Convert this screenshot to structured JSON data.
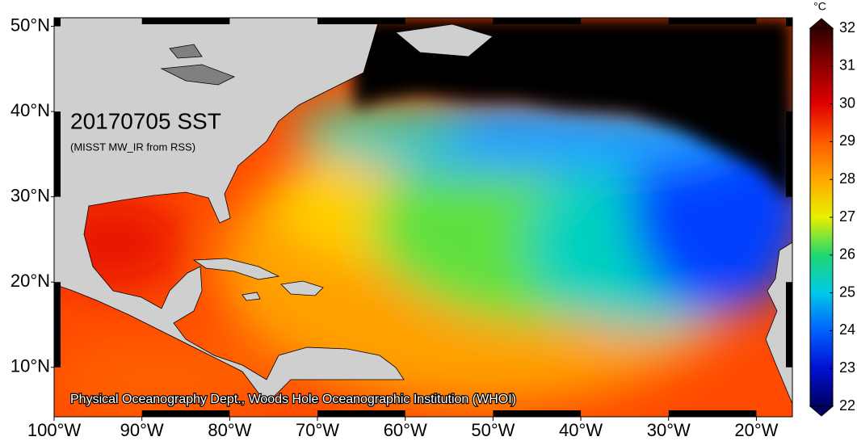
{
  "map": {
    "title": "20170705 SST",
    "subtitle": "(MISST MW_IR from RSS)",
    "credit": "Physical Oceanography Dept., Woods Hole Oceanographic Institution (WHOI)",
    "xlim": [
      -100,
      -15.9
    ],
    "ylim": [
      4.2,
      51
    ],
    "xticks": [
      {
        "value": -100,
        "label": "100°W"
      },
      {
        "value": -90,
        "label": "90°W"
      },
      {
        "value": -80,
        "label": "80°W"
      },
      {
        "value": -70,
        "label": "70°W"
      },
      {
        "value": -60,
        "label": "60°W"
      },
      {
        "value": -50,
        "label": "50°W"
      },
      {
        "value": -40,
        "label": "40°W"
      },
      {
        "value": -30,
        "label": "30°W"
      },
      {
        "value": -20,
        "label": "20°W"
      }
    ],
    "yticks": [
      {
        "value": 10,
        "label": "10°N"
      },
      {
        "value": 20,
        "label": "20°N"
      },
      {
        "value": 30,
        "label": "30°N"
      },
      {
        "value": 40,
        "label": "40°N"
      },
      {
        "value": 50,
        "label": "50°N"
      }
    ],
    "colorbar": {
      "unit": "°C",
      "lim": [
        22,
        32
      ],
      "ticks": [
        22,
        23,
        24,
        25,
        26,
        27,
        28,
        29,
        30,
        31,
        32
      ],
      "colors": [
        "#000060",
        "#0010d0",
        "#0060ff",
        "#00c8e8",
        "#20d870",
        "#e8f000",
        "#ffa800",
        "#ff5a00",
        "#e00000",
        "#8c0000",
        "#300000"
      ]
    }
  }
}
